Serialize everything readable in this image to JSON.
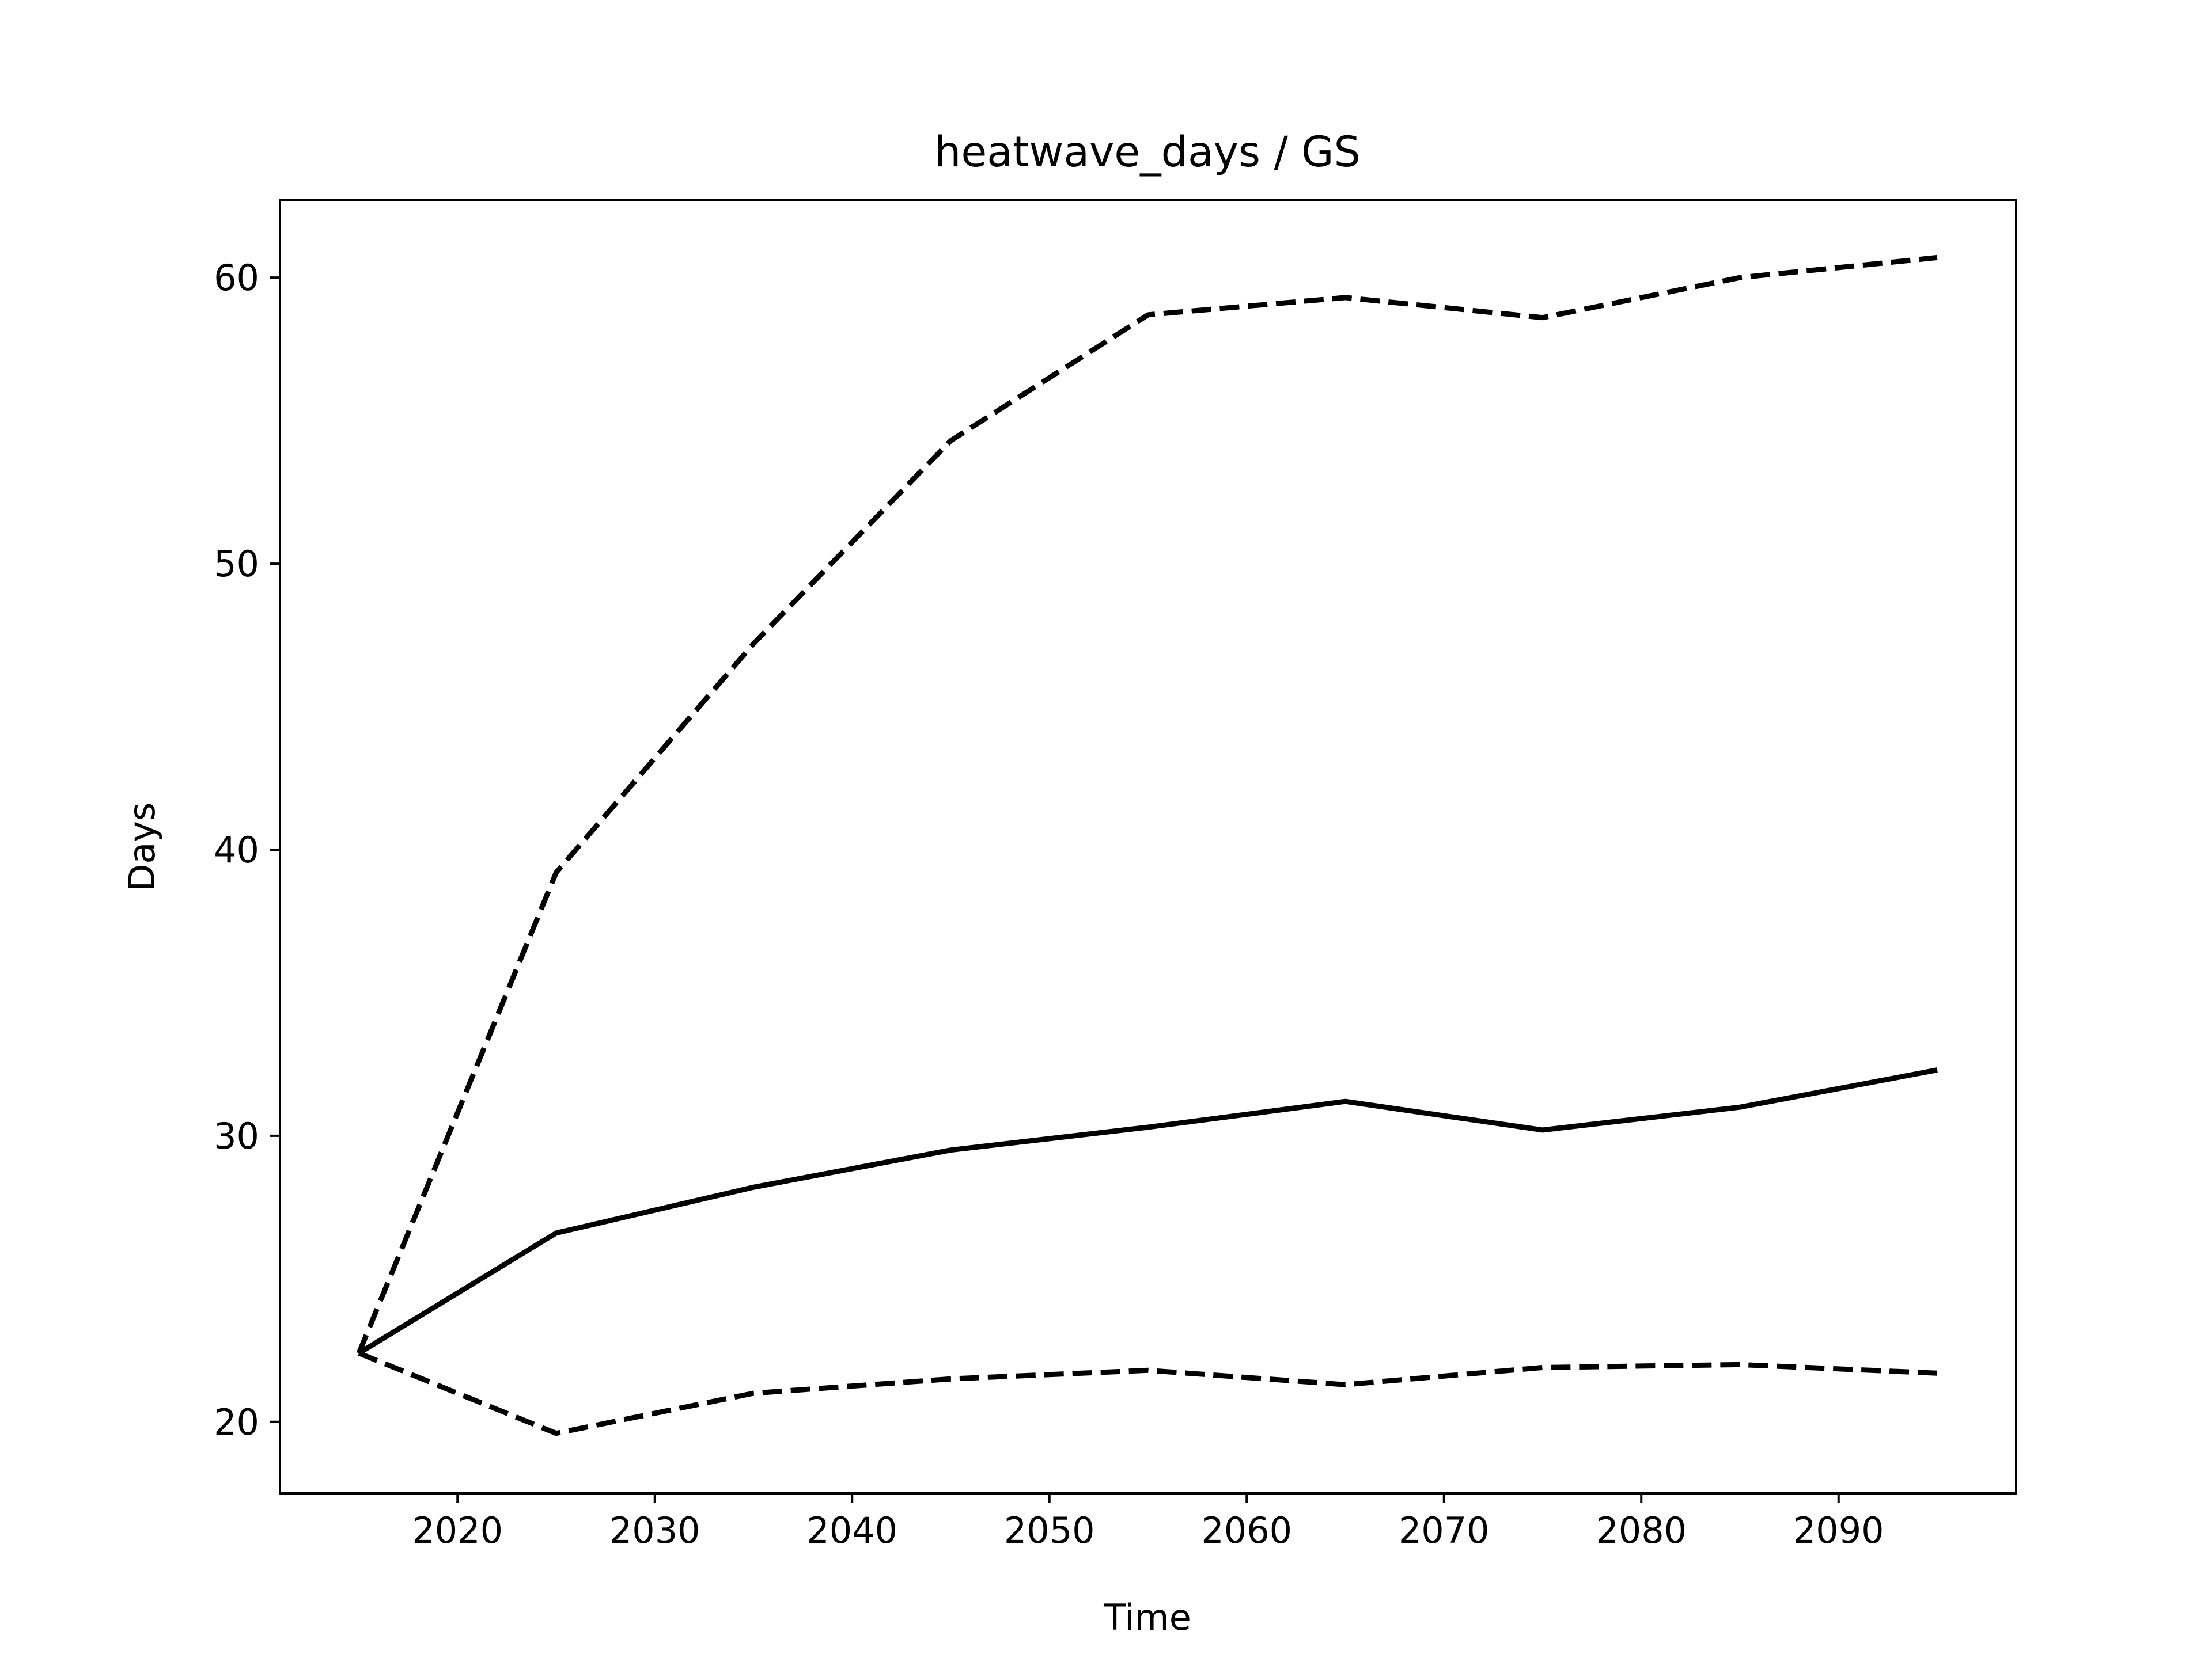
{
  "chart_data": {
    "type": "line",
    "title": "heatwave_days / GS",
    "xlabel": "Time",
    "ylabel": "Days",
    "xlim": [
      2011,
      2099
    ],
    "ylim": [
      17.5,
      62.7
    ],
    "xticks": [
      2020,
      2030,
      2040,
      2050,
      2060,
      2070,
      2080,
      2090
    ],
    "yticks": [
      20,
      30,
      40,
      50,
      60
    ],
    "grid": false,
    "legend": "none",
    "color": "#000000",
    "x": [
      2015,
      2025,
      2035,
      2045,
      2055,
      2065,
      2075,
      2085,
      2095
    ],
    "series": [
      {
        "style": "solid",
        "values": [
          22.4,
          26.6,
          28.2,
          29.5,
          30.3,
          31.2,
          30.2,
          31.0,
          32.3
        ]
      },
      {
        "style": "dashed",
        "values": [
          22.4,
          39.2,
          47.2,
          54.3,
          58.7,
          59.3,
          58.6,
          60.0,
          60.7
        ]
      },
      {
        "style": "dashed",
        "values": [
          22.4,
          19.6,
          21.0,
          21.5,
          21.8,
          21.3,
          21.9,
          22.0,
          21.7
        ]
      }
    ]
  }
}
